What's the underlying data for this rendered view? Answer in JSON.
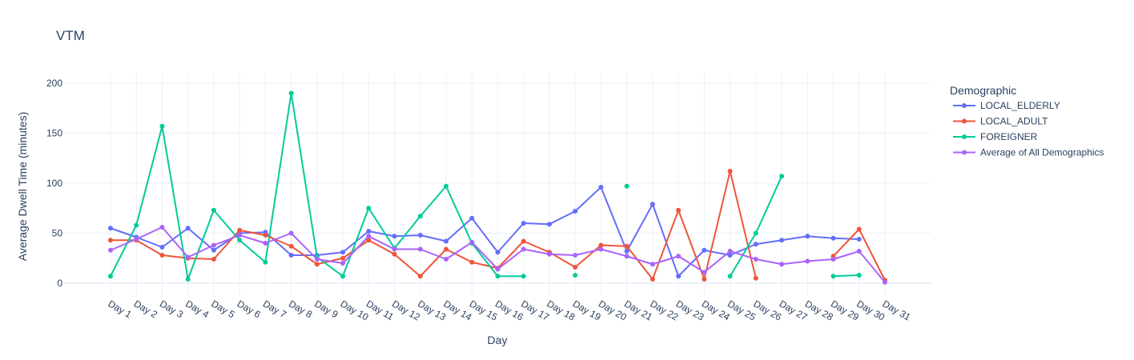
{
  "chart_data": {
    "type": "line",
    "title": "VTM",
    "xlabel": "Day",
    "ylabel": "Average Dwell Time (minutes)",
    "ylim": [
      -5,
      205
    ],
    "yticks": [
      0,
      50,
      100,
      150,
      200
    ],
    "grid": true,
    "legend": {
      "title": "Demographic",
      "placement": "right"
    },
    "categories": [
      "Day 1",
      "Day 2",
      "Day 3",
      "Day 4",
      "Day 5",
      "Day 6",
      "Day 7",
      "Day 8",
      "Day 9",
      "Day 10",
      "Day 11",
      "Day 12",
      "Day 13",
      "Day 14",
      "Day 15",
      "Day 16",
      "Day 17",
      "Day 18",
      "Day 19",
      "Day 20",
      "Day 21",
      "Day 22",
      "Day 23",
      "Day 24",
      "Day 25",
      "Day 26",
      "Day 27",
      "Day 28",
      "Day 29",
      "Day 30",
      "Day 31"
    ],
    "series": [
      {
        "name": "LOCAL_ELDERLY",
        "color": "#636efa",
        "values": [
          55,
          46,
          36,
          55,
          33,
          50,
          51,
          28,
          28,
          31,
          52,
          47,
          48,
          42,
          65,
          31,
          60,
          59,
          72,
          96,
          32,
          79,
          7,
          33,
          28,
          39,
          43,
          47,
          45,
          44,
          null
        ]
      },
      {
        "name": "LOCAL_ADULT",
        "color": "#ef553b",
        "values": [
          43,
          43,
          28,
          25,
          24,
          53,
          48,
          37,
          19,
          25,
          43,
          29,
          7,
          34,
          21,
          15,
          42,
          31,
          16,
          38,
          37,
          4,
          73,
          4,
          112,
          5,
          null,
          null,
          27,
          54,
          3
        ]
      },
      {
        "name": "FOREIGNER",
        "color": "#00cc96",
        "values": [
          7,
          58,
          157,
          4,
          73,
          43,
          21,
          190,
          26,
          7,
          75,
          35,
          67,
          97,
          40,
          7,
          7,
          null,
          8,
          null,
          97,
          null,
          null,
          null,
          7,
          50,
          107,
          null,
          7,
          8,
          null
        ]
      },
      {
        "name": "Average of All Demographics",
        "color": "#ab63fa",
        "values": [
          33,
          44,
          56,
          26,
          38,
          48,
          40,
          50,
          24,
          20,
          47,
          34,
          34,
          24,
          41,
          14,
          34,
          29,
          28,
          34,
          27,
          19,
          27,
          11,
          32,
          24,
          19,
          22,
          24,
          32,
          1
        ]
      }
    ]
  }
}
